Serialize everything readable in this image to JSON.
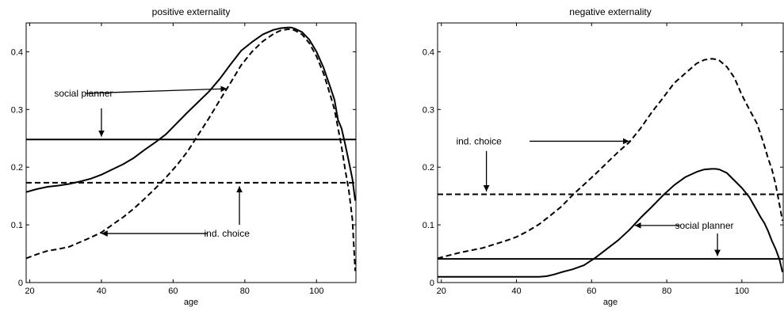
{
  "chart_data": [
    {
      "type": "line",
      "title": "positive externality",
      "xlabel": "age",
      "ylabel": "",
      "xlim": [
        19,
        111
      ],
      "ylim": [
        0,
        0.45
      ],
      "xticks": [
        20,
        40,
        60,
        80,
        100
      ],
      "yticks": [
        0,
        0.1,
        0.2,
        0.3,
        0.4
      ],
      "xtick_labels": [
        "20",
        "40",
        "60",
        "80",
        "100"
      ],
      "ytick_labels": [
        "0",
        "0.1",
        "0.2",
        "0.3",
        "0.4"
      ],
      "grid": false,
      "series": [
        {
          "style": "solid",
          "x": [
            19,
            22,
            25,
            28,
            31,
            34,
            37,
            40,
            43,
            46,
            49,
            52,
            55,
            58,
            61,
            64,
            67,
            70,
            73,
            76,
            79,
            82,
            85,
            88,
            90,
            92,
            93,
            94,
            96,
            98,
            100,
            102,
            104,
            105,
            106,
            107,
            108,
            109,
            110,
            110.8
          ],
          "y": [
            0.157,
            0.162,
            0.166,
            0.168,
            0.171,
            0.175,
            0.18,
            0.187,
            0.196,
            0.205,
            0.216,
            0.23,
            0.243,
            0.257,
            0.276,
            0.295,
            0.313,
            0.331,
            0.353,
            0.378,
            0.402,
            0.417,
            0.43,
            0.438,
            0.441,
            0.442,
            0.442,
            0.44,
            0.434,
            0.421,
            0.4,
            0.372,
            0.336,
            0.317,
            0.282,
            0.267,
            0.24,
            0.21,
            0.18,
            0.142
          ]
        },
        {
          "style": "dashed",
          "x": [
            19,
            22,
            25,
            28,
            31,
            34,
            37,
            40,
            43,
            46,
            49,
            52,
            55,
            58,
            61,
            64,
            67,
            70,
            73,
            76,
            79,
            82,
            85,
            88,
            90,
            92,
            93,
            94,
            96,
            98,
            100,
            102,
            104,
            105,
            106,
            107,
            108,
            109,
            110,
            110.8
          ],
          "y": [
            0.042,
            0.049,
            0.055,
            0.058,
            0.062,
            0.07,
            0.078,
            0.087,
            0.1,
            0.113,
            0.128,
            0.145,
            0.163,
            0.182,
            0.203,
            0.227,
            0.256,
            0.285,
            0.316,
            0.346,
            0.377,
            0.4,
            0.418,
            0.431,
            0.437,
            0.439,
            0.439,
            0.437,
            0.43,
            0.415,
            0.392,
            0.362,
            0.322,
            0.3,
            0.268,
            0.235,
            0.196,
            0.16,
            0.11,
            0.02
          ]
        },
        {
          "style": "solid",
          "x": [
            19,
            111
          ],
          "y": [
            0.248,
            0.248
          ]
        },
        {
          "style": "dashed",
          "x": [
            19,
            111
          ],
          "y": [
            0.173,
            0.173
          ]
        }
      ],
      "annotations": [
        {
          "text": "social planner",
          "text_x": 35,
          "text_y": 0.328,
          "arrows": [
            {
              "from": [
                35.5,
                0.328
              ],
              "to": [
                75,
                0.336
              ]
            },
            {
              "from": [
                40,
                0.302
              ],
              "to": [
                40,
                0.253
              ]
            }
          ]
        },
        {
          "text": "ind. choice",
          "text_x": 75,
          "text_y": 0.085,
          "arrows": [
            {
              "from": [
                69.5,
                0.085
              ],
              "to": [
                40,
                0.085
              ]
            },
            {
              "from": [
                78.5,
                0.1
              ],
              "to": [
                78.5,
                0.167
              ]
            }
          ]
        }
      ]
    },
    {
      "type": "line",
      "title": "negative externality",
      "xlabel": "age",
      "ylabel": "",
      "xlim": [
        19,
        111
      ],
      "ylim": [
        0,
        0.45
      ],
      "xticks": [
        20,
        40,
        60,
        80,
        100
      ],
      "yticks": [
        0,
        0.1,
        0.2,
        0.3,
        0.4
      ],
      "xtick_labels": [
        "20",
        "40",
        "60",
        "80",
        "100"
      ],
      "ytick_labels": [
        "0",
        "0.1",
        "0.2",
        "0.3",
        "0.4"
      ],
      "grid": false,
      "series": [
        {
          "style": "dashed",
          "x": [
            19,
            22,
            25,
            28,
            31,
            34,
            37,
            40,
            43,
            46,
            49,
            52,
            55,
            58,
            61,
            64,
            67,
            70,
            73,
            76,
            79,
            82,
            85,
            88,
            90,
            92,
            93,
            94,
            96,
            98,
            100,
            102,
            104,
            105,
            106,
            107,
            108,
            109,
            110,
            110.8
          ],
          "y": [
            0.042,
            0.047,
            0.052,
            0.056,
            0.06,
            0.066,
            0.072,
            0.079,
            0.089,
            0.101,
            0.116,
            0.132,
            0.152,
            0.17,
            0.188,
            0.207,
            0.226,
            0.243,
            0.267,
            0.295,
            0.32,
            0.346,
            0.363,
            0.38,
            0.386,
            0.388,
            0.387,
            0.385,
            0.374,
            0.355,
            0.325,
            0.3,
            0.276,
            0.257,
            0.237,
            0.215,
            0.196,
            0.17,
            0.135,
            0.107
          ]
        },
        {
          "style": "solid",
          "x": [
            19,
            22,
            25,
            28,
            31,
            34,
            37,
            40,
            43,
            46,
            48,
            50,
            52,
            55,
            58,
            61,
            64,
            67,
            70,
            73,
            76,
            79,
            82,
            85,
            88,
            90,
            92,
            93,
            94,
            96,
            98,
            100,
            102,
            104,
            105,
            106,
            107,
            108,
            109,
            110,
            110.8
          ],
          "y": [
            0.01,
            0.01,
            0.01,
            0.01,
            0.01,
            0.01,
            0.01,
            0.01,
            0.01,
            0.01,
            0.011,
            0.014,
            0.018,
            0.023,
            0.03,
            0.043,
            0.058,
            0.073,
            0.091,
            0.112,
            0.131,
            0.151,
            0.169,
            0.183,
            0.192,
            0.196,
            0.197,
            0.197,
            0.196,
            0.19,
            0.177,
            0.164,
            0.148,
            0.125,
            0.113,
            0.103,
            0.089,
            0.072,
            0.058,
            0.04,
            0.018
          ]
        },
        {
          "style": "dashed",
          "x": [
            19,
            111
          ],
          "y": [
            0.153,
            0.153
          ]
        },
        {
          "style": "solid",
          "x": [
            19,
            111
          ],
          "y": [
            0.041,
            0.041
          ]
        }
      ],
      "annotations": [
        {
          "text": "ind. choice",
          "text_x": 30,
          "text_y": 0.245,
          "arrows": [
            {
              "from": [
                43.5,
                0.245
              ],
              "to": [
                70,
                0.245
              ]
            },
            {
              "from": [
                32,
                0.228
              ],
              "to": [
                32,
                0.158
              ]
            }
          ]
        },
        {
          "text": "social planner",
          "text_x": 90,
          "text_y": 0.099,
          "arrows": [
            {
              "from": [
                83.5,
                0.099
              ],
              "to": [
                71.5,
                0.099
              ]
            },
            {
              "from": [
                93.5,
                0.085
              ],
              "to": [
                93.5,
                0.046
              ]
            }
          ]
        }
      ]
    }
  ]
}
